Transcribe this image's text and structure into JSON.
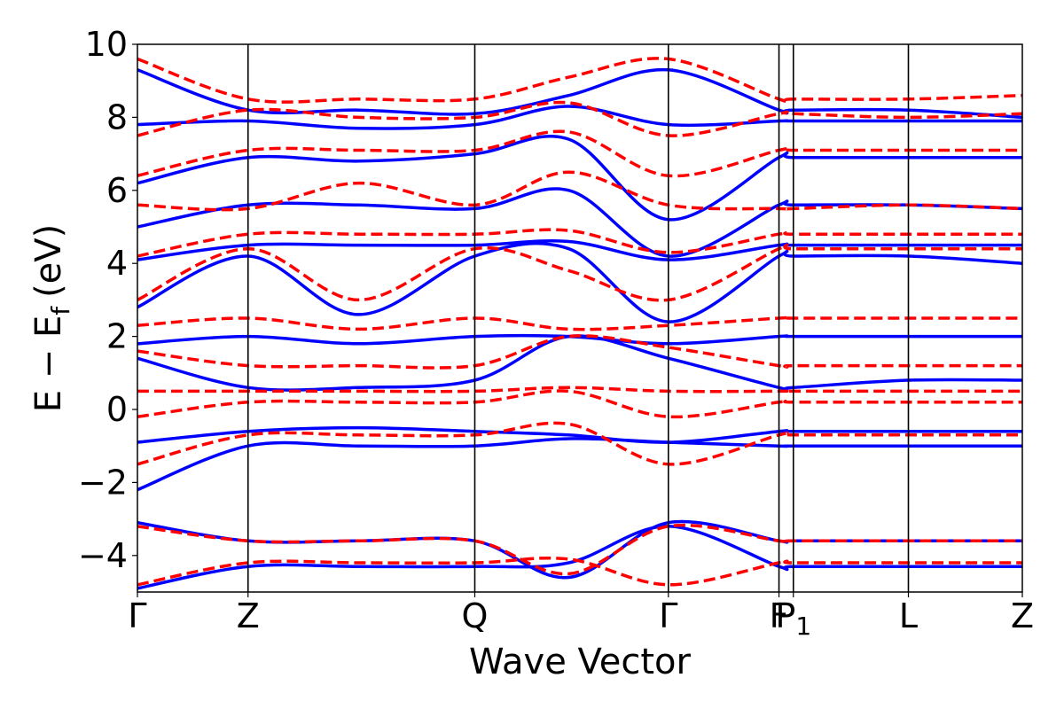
{
  "chart_data": {
    "type": "line",
    "title": "",
    "xlabel": "Wave Vector",
    "ylabel": "E − E",
    "ylabel_subscript": "f",
    "ylabel_unit": "(eV)",
    "ylim": [
      -5,
      10
    ],
    "yticks": [
      -4,
      -2,
      0,
      2,
      4,
      6,
      8,
      10
    ],
    "ytick_labels": [
      "−4",
      "−2",
      "0",
      "2",
      "4",
      "6",
      "8",
      "10"
    ],
    "xlim": [
      0,
      8
    ],
    "kpoints": [
      {
        "label": "Γ",
        "x": 0.0
      },
      {
        "label": "Z",
        "x": 1.0
      },
      {
        "label": "Q",
        "x": 3.05
      },
      {
        "label": "Γ",
        "x": 4.8
      },
      {
        "label": "F",
        "x": 5.8
      },
      {
        "label": "P",
        "x": 5.93,
        "subscript": "1"
      },
      {
        "label": "L",
        "x": 6.97
      },
      {
        "label": "Z",
        "x": 8.0
      }
    ],
    "grid": false,
    "legend": "none",
    "colors": {
      "solid": "#0000ff",
      "dashed": "#ff0000",
      "frame": "#000000"
    },
    "series": [
      {
        "style": "solid",
        "color": "#0000ff",
        "x": [
          0,
          1,
          2,
          3.05,
          3.9,
          4.8,
          5.8,
          5.93,
          6.97,
          8
        ],
        "y": [
          -2.2,
          -1.0,
          -1.0,
          -1.0,
          -0.8,
          -0.9,
          -1.0,
          -1.0,
          -1.0,
          -1.0
        ]
      },
      {
        "style": "solid",
        "color": "#0000ff",
        "x": [
          0,
          1,
          2,
          3.05,
          3.9,
          4.8,
          5.8,
          5.93,
          6.97,
          8
        ],
        "y": [
          -0.9,
          -0.6,
          -0.5,
          -0.6,
          -0.7,
          -0.9,
          -0.6,
          -0.6,
          -0.6,
          -0.6
        ]
      },
      {
        "style": "solid",
        "color": "#0000ff",
        "x": [
          0,
          1,
          2,
          3.05,
          3.9,
          4.8,
          5.8,
          5.93,
          6.97,
          8
        ],
        "y": [
          1.4,
          0.6,
          0.6,
          0.8,
          2.0,
          1.4,
          0.6,
          0.6,
          0.8,
          0.8
        ]
      },
      {
        "style": "solid",
        "color": "#0000ff",
        "x": [
          0,
          1,
          2,
          3.05,
          3.9,
          4.8,
          5.8,
          5.93,
          6.97,
          8
        ],
        "y": [
          1.8,
          2.0,
          1.8,
          2.0,
          2.0,
          1.8,
          2.0,
          2.0,
          2.0,
          2.0
        ]
      },
      {
        "style": "solid",
        "color": "#0000ff",
        "x": [
          0,
          1,
          2,
          3.05,
          3.9,
          4.8,
          5.8,
          5.93,
          6.97,
          8
        ],
        "y": [
          2.8,
          4.2,
          2.6,
          4.2,
          4.4,
          2.4,
          4.2,
          4.2,
          4.2,
          4.0
        ]
      },
      {
        "style": "solid",
        "color": "#0000ff",
        "x": [
          0,
          1,
          2,
          3.05,
          3.9,
          4.8,
          5.8,
          5.93,
          6.97,
          8
        ],
        "y": [
          4.1,
          4.5,
          4.5,
          4.5,
          4.6,
          4.1,
          4.5,
          4.5,
          4.5,
          4.5
        ]
      },
      {
        "style": "solid",
        "color": "#0000ff",
        "x": [
          0,
          1,
          2,
          3.05,
          3.9,
          4.8,
          5.8,
          5.93,
          6.97,
          8
        ],
        "y": [
          5.0,
          5.6,
          5.6,
          5.5,
          6.0,
          4.2,
          5.6,
          5.6,
          5.6,
          5.5
        ]
      },
      {
        "style": "solid",
        "color": "#0000ff",
        "x": [
          0,
          1,
          2,
          3.05,
          3.9,
          4.8,
          5.8,
          5.93,
          6.97,
          8
        ],
        "y": [
          6.2,
          6.9,
          6.8,
          7.0,
          7.4,
          5.2,
          6.9,
          6.9,
          6.9,
          6.9
        ]
      },
      {
        "style": "solid",
        "color": "#0000ff",
        "x": [
          0,
          1,
          2,
          3.05,
          3.9,
          4.8,
          5.8,
          5.93,
          6.97,
          8
        ],
        "y": [
          7.8,
          7.9,
          7.7,
          7.8,
          8.3,
          7.8,
          7.9,
          7.9,
          7.9,
          7.9
        ]
      },
      {
        "style": "solid",
        "color": "#0000ff",
        "x": [
          0,
          1,
          2,
          3.05,
          3.9,
          4.8,
          5.8,
          5.93,
          6.97,
          8
        ],
        "y": [
          9.3,
          8.2,
          8.2,
          8.1,
          8.6,
          9.3,
          8.2,
          8.2,
          8.2,
          8.0
        ]
      },
      {
        "style": "solid",
        "color": "#0000ff",
        "x": [
          0,
          1,
          2,
          3.05,
          3.9,
          4.8,
          5.8,
          5.93,
          6.97,
          8
        ],
        "y": [
          -3.1,
          -3.6,
          -3.6,
          -3.6,
          -4.6,
          -3.1,
          -3.6,
          -3.6,
          -3.6,
          -3.6
        ]
      },
      {
        "style": "solid",
        "color": "#0000ff",
        "x": [
          0,
          1,
          2,
          3.05,
          3.9,
          4.8,
          5.8,
          5.93,
          6.97,
          8
        ],
        "y": [
          -4.9,
          -4.3,
          -4.3,
          -4.3,
          -4.2,
          -3.2,
          -4.3,
          -4.3,
          -4.3,
          -4.3
        ]
      },
      {
        "style": "dashed",
        "color": "#ff0000",
        "x": [
          0,
          1,
          2,
          3.05,
          3.9,
          4.8,
          5.8,
          5.93,
          6.97,
          8
        ],
        "y": [
          -1.5,
          -0.7,
          -0.7,
          -0.7,
          -0.4,
          -1.5,
          -0.7,
          -0.7,
          -0.7,
          -0.7
        ]
      },
      {
        "style": "dashed",
        "color": "#ff0000",
        "x": [
          0,
          1,
          2,
          3.05,
          3.9,
          4.8,
          5.8,
          5.93,
          6.97,
          8
        ],
        "y": [
          -0.2,
          0.2,
          0.2,
          0.2,
          0.5,
          -0.2,
          0.2,
          0.2,
          0.2,
          0.2
        ]
      },
      {
        "style": "dashed",
        "color": "#ff0000",
        "x": [
          0,
          1,
          2,
          3.05,
          3.9,
          4.8,
          5.8,
          5.93,
          6.97,
          8
        ],
        "y": [
          0.5,
          0.5,
          0.5,
          0.5,
          0.6,
          0.5,
          0.5,
          0.5,
          0.5,
          0.5
        ]
      },
      {
        "style": "dashed",
        "color": "#ff0000",
        "x": [
          0,
          1,
          2,
          3.05,
          3.9,
          4.8,
          5.8,
          5.93,
          6.97,
          8
        ],
        "y": [
          1.6,
          1.2,
          1.2,
          1.2,
          2.0,
          1.7,
          1.2,
          1.2,
          1.2,
          1.2
        ]
      },
      {
        "style": "dashed",
        "color": "#ff0000",
        "x": [
          0,
          1,
          2,
          3.05,
          3.9,
          4.8,
          5.8,
          5.93,
          6.97,
          8
        ],
        "y": [
          2.3,
          2.5,
          2.2,
          2.5,
          2.2,
          2.3,
          2.5,
          2.5,
          2.5,
          2.5
        ]
      },
      {
        "style": "dashed",
        "color": "#ff0000",
        "x": [
          0,
          1,
          2,
          3.05,
          3.9,
          4.8,
          5.8,
          5.93,
          6.97,
          8
        ],
        "y": [
          3.0,
          4.4,
          3.0,
          4.4,
          3.8,
          3.0,
          4.4,
          4.4,
          4.4,
          4.4
        ]
      },
      {
        "style": "dashed",
        "color": "#ff0000",
        "x": [
          0,
          1,
          2,
          3.05,
          3.9,
          4.8,
          5.8,
          5.93,
          6.97,
          8
        ],
        "y": [
          4.2,
          4.8,
          4.8,
          4.8,
          4.9,
          4.3,
          4.8,
          4.8,
          4.8,
          4.8
        ]
      },
      {
        "style": "dashed",
        "color": "#ff0000",
        "x": [
          0,
          1,
          2,
          3.05,
          3.9,
          4.8,
          5.8,
          5.93,
          6.97,
          8
        ],
        "y": [
          5.6,
          5.5,
          6.2,
          5.6,
          6.5,
          5.6,
          5.5,
          5.5,
          5.6,
          5.5
        ]
      },
      {
        "style": "dashed",
        "color": "#ff0000",
        "x": [
          0,
          1,
          2,
          3.05,
          3.9,
          4.8,
          5.8,
          5.93,
          6.97,
          8
        ],
        "y": [
          6.4,
          7.1,
          7.1,
          7.1,
          7.6,
          6.4,
          7.1,
          7.1,
          7.1,
          7.1
        ]
      },
      {
        "style": "dashed",
        "color": "#ff0000",
        "x": [
          0,
          1,
          2,
          3.05,
          3.9,
          4.8,
          5.8,
          5.93,
          6.97,
          8
        ],
        "y": [
          7.5,
          8.2,
          8.0,
          8.0,
          8.4,
          7.5,
          8.1,
          8.1,
          8.0,
          8.1
        ]
      },
      {
        "style": "dashed",
        "color": "#ff0000",
        "x": [
          0,
          1,
          2,
          3.05,
          3.9,
          4.8,
          5.8,
          5.93,
          6.97,
          8
        ],
        "y": [
          9.6,
          8.5,
          8.5,
          8.5,
          9.1,
          9.6,
          8.5,
          8.5,
          8.5,
          8.6
        ]
      },
      {
        "style": "dashed",
        "color": "#ff0000",
        "x": [
          0,
          1,
          2,
          3.05,
          3.9,
          4.8,
          5.8,
          5.93,
          6.97,
          8
        ],
        "y": [
          -3.2,
          -3.6,
          -3.6,
          -3.6,
          -4.5,
          -3.2,
          -3.6,
          -3.6,
          -3.6,
          -3.6
        ]
      },
      {
        "style": "dashed",
        "color": "#ff0000",
        "x": [
          0,
          1,
          2,
          3.05,
          3.9,
          4.8,
          5.8,
          5.93,
          6.97,
          8
        ],
        "y": [
          -4.8,
          -4.2,
          -4.2,
          -4.2,
          -4.1,
          -4.8,
          -4.2,
          -4.2,
          -4.2,
          -4.2
        ]
      }
    ]
  }
}
